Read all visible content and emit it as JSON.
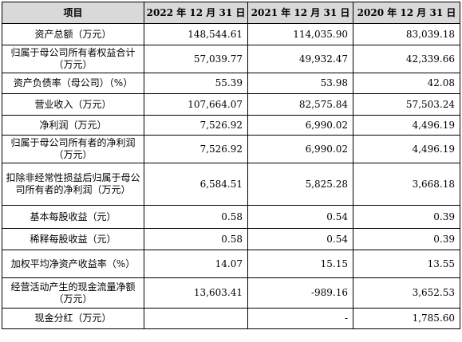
{
  "header": {
    "item": "项目",
    "col_2022": "2022 年 12 月 31 日",
    "col_2021": "2021 年 12 月 31 日",
    "col_2020": "2020 年 12 月 31 日"
  },
  "rows": [
    {
      "label": "资产总额（万元）",
      "v2022": "148,544.61",
      "v2021": "114,035.90",
      "v2020": "83,039.18"
    },
    {
      "label": "归属于母公司所有者权益合计（万元）",
      "v2022": "57,039.77",
      "v2021": "49,932.47",
      "v2020": "42,339.66"
    },
    {
      "label": "资产负债率（母公司）（%）",
      "v2022": "55.39",
      "v2021": "53.98",
      "v2020": "42.08"
    },
    {
      "label": "营业收入（万元）",
      "v2022": "107,664.07",
      "v2021": "82,575.84",
      "v2020": "57,503.24"
    },
    {
      "label": "净利润（万元）",
      "v2022": "7,526.92",
      "v2021": "6,990.02",
      "v2020": "4,496.19"
    },
    {
      "label": "归属于母公司所有者的净利润（万元）",
      "v2022": "7,526.92",
      "v2021": "6,990.02",
      "v2020": "4,496.19"
    },
    {
      "label": "扣除非经常性损益后归属于母公司所有者的净利润（万元）",
      "v2022": "6,584.51",
      "v2021": "5,825.28",
      "v2020": "3,668.18"
    },
    {
      "label": "基本每股收益（元）",
      "v2022": "0.58",
      "v2021": "0.54",
      "v2020": "0.39"
    },
    {
      "label": "稀释每股收益（元）",
      "v2022": "0.58",
      "v2021": "0.54",
      "v2020": "0.39"
    },
    {
      "label": "加权平均净资产收益率（%）",
      "v2022": "14.07",
      "v2021": "15.15",
      "v2020": "13.55"
    },
    {
      "label": "经营活动产生的现金流量净额（万元）",
      "v2022": "13,603.41",
      "v2021": "-989.16",
      "v2020": "3,652.53"
    },
    {
      "label": "现金分红（万元）",
      "v2022": "",
      "v2021": "-",
      "v2020": "1,785.60"
    }
  ]
}
